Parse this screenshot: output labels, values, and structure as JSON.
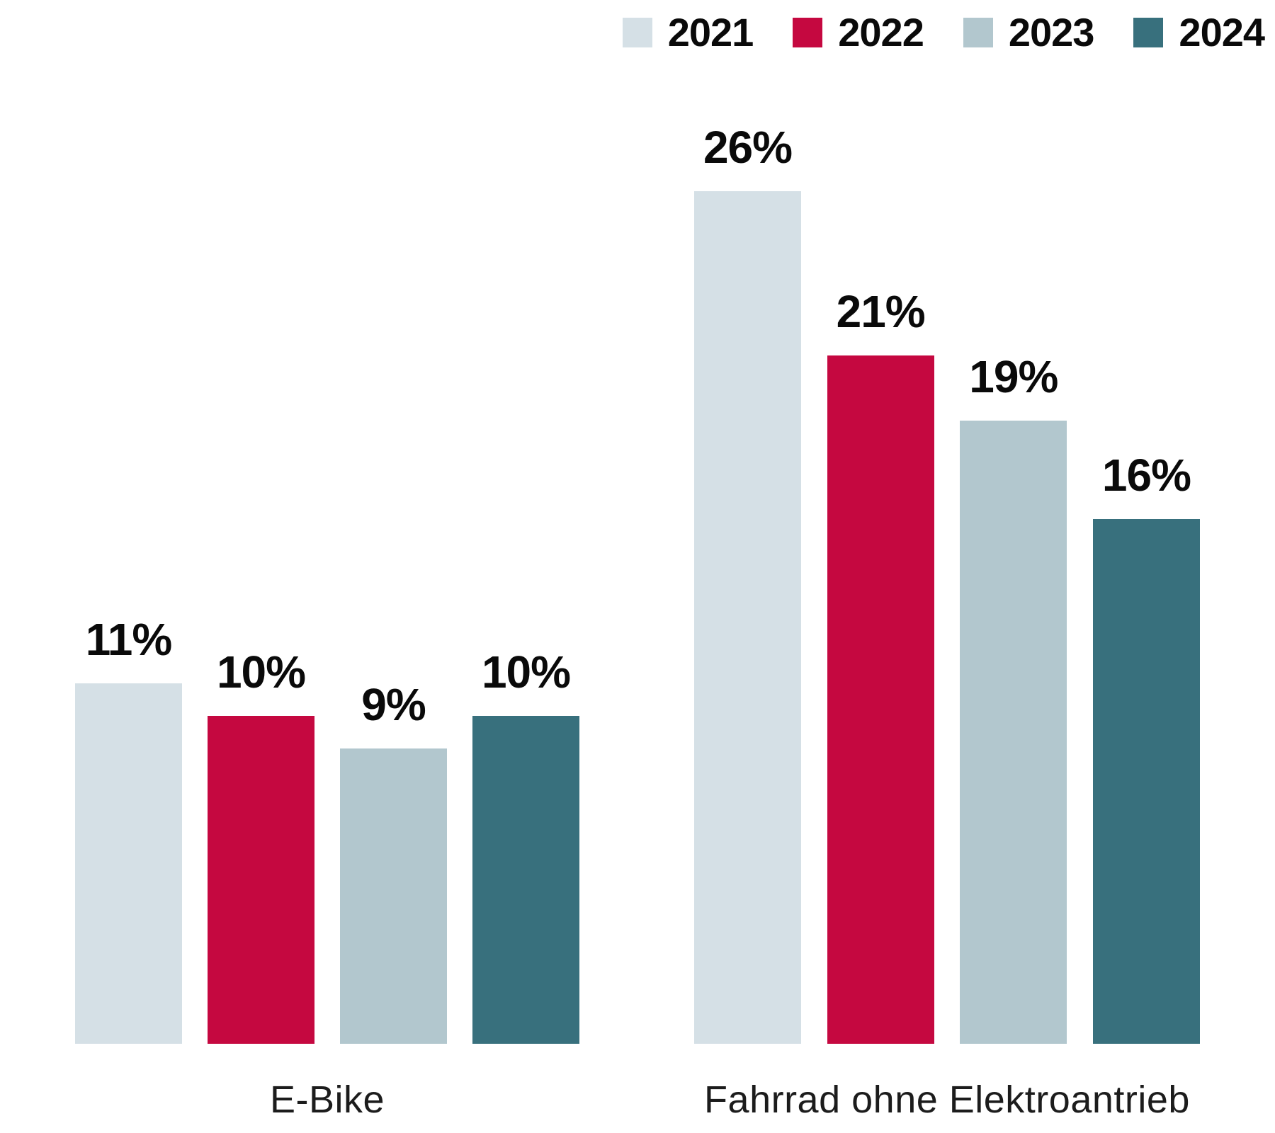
{
  "chart_data": {
    "type": "bar",
    "title": "",
    "categories": [
      "E-Bike",
      "Fahrrad ohne Elektroantrieb"
    ],
    "series": [
      {
        "name": "2021",
        "color": "#d5e0e6",
        "values": [
          11,
          26
        ]
      },
      {
        "name": "2022",
        "color": "#c50840",
        "values": [
          10,
          21
        ]
      },
      {
        "name": "2023",
        "color": "#b2c7ce",
        "values": [
          9,
          19
        ]
      },
      {
        "name": "2024",
        "color": "#38707d",
        "values": [
          10,
          16
        ]
      }
    ],
    "value_suffix": "%",
    "data_labels": {
      "E-Bike": [
        "11%",
        "10%",
        "9%",
        "10%"
      ],
      "Fahrrad ohne Elektroantrieb": [
        "26%",
        "21%",
        "19%",
        "16%"
      ]
    },
    "ylim": [
      0,
      26
    ],
    "grid": false,
    "axes_visible": false,
    "legend_position": "top-right",
    "legend_labels": [
      "2021",
      "2022",
      "2023",
      "2024"
    ]
  }
}
